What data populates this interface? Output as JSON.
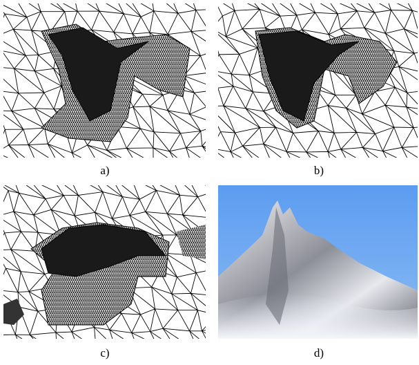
{
  "panels": [
    {
      "caption": "a)"
    },
    {
      "caption": "b)"
    },
    {
      "caption": "c)"
    },
    {
      "caption": "d)"
    }
  ]
}
